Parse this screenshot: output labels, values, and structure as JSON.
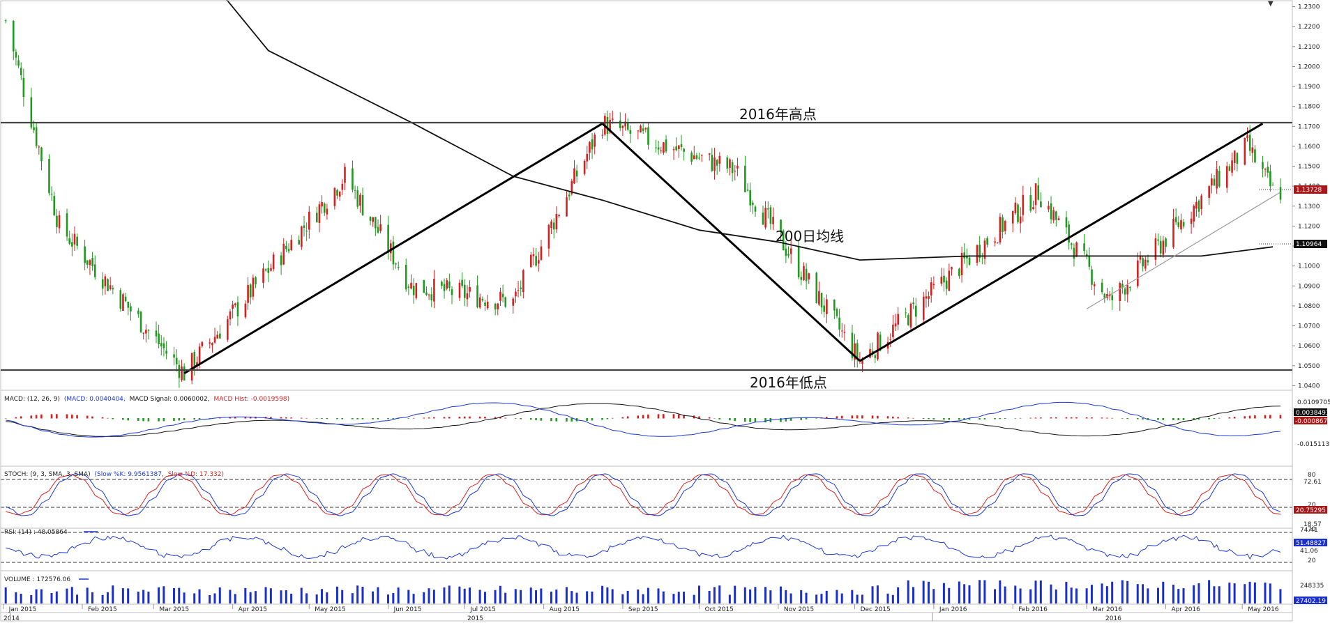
{
  "chart_data": {
    "type": "candlestick",
    "instrument_panels": [
      "price",
      "macd",
      "stoch",
      "rsi",
      "volume"
    ],
    "price": {
      "y_ticks": [
        "1.2300",
        "1.2200",
        "1.2100",
        "1.2000",
        "1.1900",
        "1.1800",
        "1.1700",
        "1.1600",
        "1.1500",
        "1.1400",
        "1.1300",
        "1.1200",
        "1.1100",
        "1.1000",
        "1.0900",
        "1.0800",
        "1.0700",
        "1.0600",
        "1.0500",
        "1.0400"
      ],
      "ylim": [
        1.0377,
        1.233
      ],
      "last_price_label": "1.13728",
      "ma_label": "1.10964",
      "annotations": {
        "high_label": "2016年高点",
        "low_label": "2016年低点",
        "ma_text": "200日均线"
      },
      "high_level": 1.1714,
      "low_level": 1.0462,
      "candles_key_points": [
        {
          "date": "2015-01-02",
          "value": 1.223
        },
        {
          "date": "2015-01-23",
          "value": 1.12
        },
        {
          "date": "2015-03-13",
          "value": 1.0462
        },
        {
          "date": "2015-05-15",
          "value": 1.145
        },
        {
          "date": "2015-06-10",
          "value": 1.09
        },
        {
          "date": "2015-07-20",
          "value": 1.082
        },
        {
          "date": "2015-08-24",
          "value": 1.1714
        },
        {
          "date": "2015-10-15",
          "value": 1.148
        },
        {
          "date": "2015-12-03",
          "value": 1.0524
        },
        {
          "date": "2016-02-11",
          "value": 1.137
        },
        {
          "date": "2016-03-10",
          "value": 1.082
        },
        {
          "date": "2016-05-03",
          "value": 1.16
        },
        {
          "date": "2016-05-13",
          "value": 1.1373
        }
      ],
      "ma200": [
        {
          "date": "2015-02-15",
          "value": 1.3
        },
        {
          "date": "2015-04-15",
          "value": 1.208
        },
        {
          "date": "2015-06-10",
          "value": 1.172
        },
        {
          "date": "2015-07-20",
          "value": 1.145
        },
        {
          "date": "2015-08-24",
          "value": 1.133
        },
        {
          "date": "2015-10-01",
          "value": 1.118
        },
        {
          "date": "2015-11-01",
          "value": 1.112
        },
        {
          "date": "2015-12-03",
          "value": 1.103
        },
        {
          "date": "2016-01-15",
          "value": 1.105
        },
        {
          "date": "2016-03-01",
          "value": 1.105
        },
        {
          "date": "2016-04-15",
          "value": 1.105
        },
        {
          "date": "2016-05-13",
          "value": 1.1096
        }
      ],
      "trend_lines": [
        {
          "from": {
            "date": "2015-03-13",
            "value": 1.0462
          },
          "to": {
            "date": "2015-08-24",
            "value": 1.1714
          }
        },
        {
          "from": {
            "date": "2015-08-24",
            "value": 1.1714
          },
          "to": {
            "date": "2015-12-03",
            "value": 1.0524
          }
        },
        {
          "from": {
            "date": "2015-12-03",
            "value": 1.0524
          },
          "to": {
            "date": "2016-05-09",
            "value": 1.1714
          }
        }
      ],
      "thin_trend_line": {
        "from": {
          "date": "2016-03-01",
          "value": 1.0785
        },
        "to": {
          "date": "2016-05-16",
          "value": 1.137
        }
      }
    },
    "macd": {
      "title": "MACD: (12, 26, 9)",
      "macd_label": "(MACD: 0.0040404,",
      "signal_label": "MACD Signal: 0.0060002,",
      "hist_label": "MACD Hist: -0.0019598)",
      "y_ticks": [
        "0.0109705",
        "-0.0151139"
      ],
      "value_label_1": "0.0038493",
      "value_label_2": "-0.0008671"
    },
    "stoch": {
      "title": "STOCH: (9, 3, SMA, 3, SMA)",
      "k_label": "(Slow %K: 9.9561387,",
      "d_label": "Slow %D: 17.332)",
      "y_ticks": [
        "80",
        "72.61",
        "20",
        "18.57"
      ],
      "value_label": "20.75295",
      "levels": [
        80,
        20
      ]
    },
    "rsi": {
      "title": "RSI: (14) : 48.05864",
      "y_ticks": [
        "74.41",
        "70",
        "41.06",
        "20"
      ],
      "value_label": "51.48827",
      "levels": [
        70,
        30
      ]
    },
    "volume": {
      "title": "VOLUME : 172576.06",
      "y_ticks": [
        "248335"
      ],
      "value_label": "27402.19"
    },
    "x_axis": {
      "month_labels": [
        "Jan 2015",
        "Feb 2015",
        "Mar 2015",
        "Apr 2015",
        "May 2015",
        "Jun 2015",
        "Jul 2015",
        "Aug 2015",
        "Sep 2015",
        "Oct 2015",
        "Nov 2015",
        "Dec 2015",
        "Jan 2016",
        "Feb 2016",
        "Mar 2016",
        "Apr 2016",
        "May 2016"
      ],
      "month_dates": [
        "2015-01-01",
        "2015-02-01",
        "2015-03-01",
        "2015-04-01",
        "2015-05-01",
        "2015-06-01",
        "2015-07-01",
        "2015-08-01",
        "2015-09-01",
        "2015-10-01",
        "2015-11-01",
        "2015-12-01",
        "2016-01-01",
        "2016-02-01",
        "2016-03-01",
        "2016-04-01",
        "2016-05-01"
      ],
      "year_labels": [
        "2014",
        "2015",
        "2016"
      ],
      "x_range": [
        "2014-12-31",
        "2016-05-19"
      ]
    },
    "colors": {
      "up": "#d62020",
      "down": "#1f9a1f",
      "macd_line": "#1a37d6",
      "signal_line": "#111111",
      "stoch_k": "#1a37d6",
      "stoch_d": "#d62020",
      "rsi": "#1a37d6",
      "volume": "#1a2fcc",
      "last_price_bg": "#a81818",
      "label_bg": "#111111",
      "vol_label_bg": "#1a2fcc"
    }
  }
}
